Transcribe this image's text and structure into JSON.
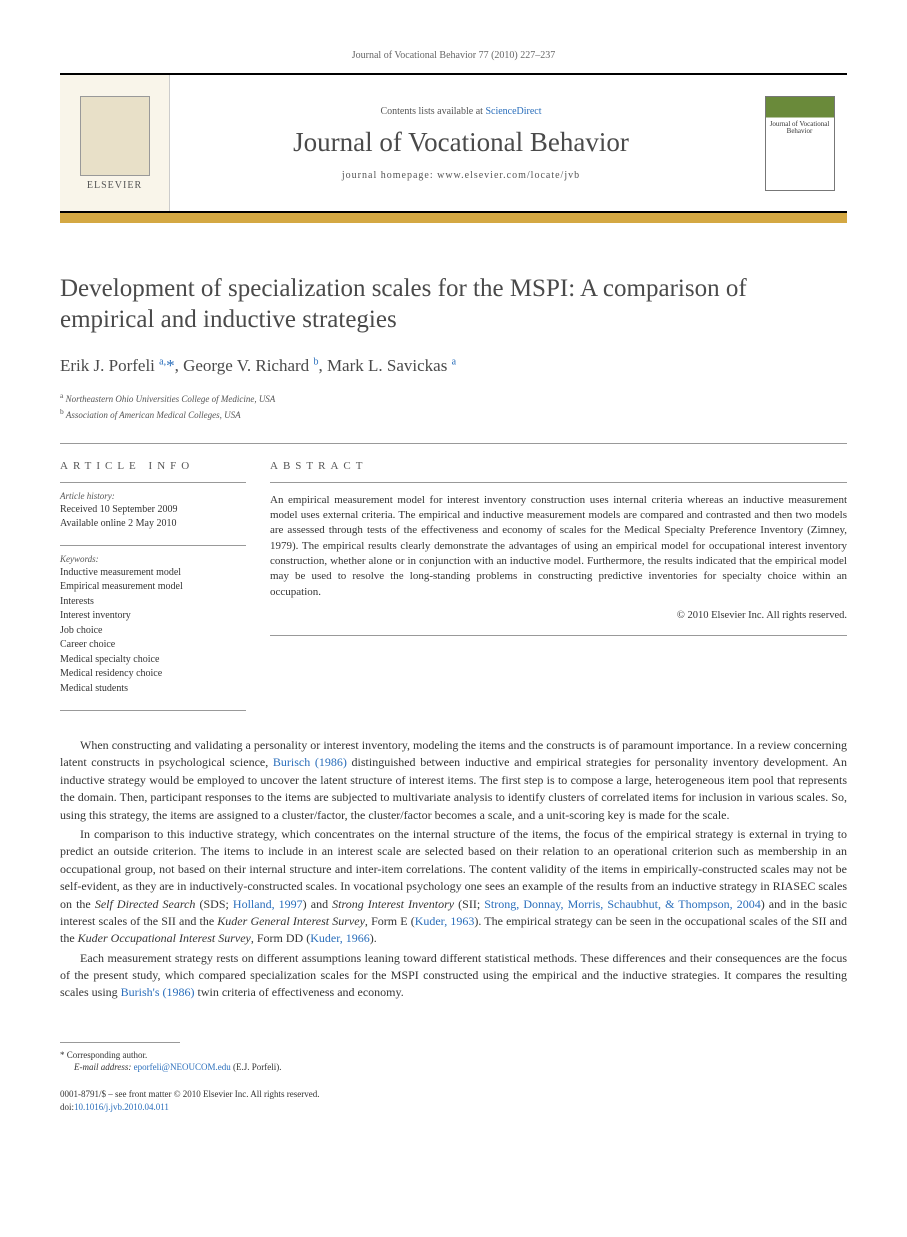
{
  "header": {
    "citation": "Journal of Vocational Behavior 77 (2010) 227–237"
  },
  "masthead": {
    "contents_prefix": "Contents lists available at ",
    "contents_link": "ScienceDirect",
    "journal_title": "Journal of Vocational Behavior",
    "homepage_prefix": "journal homepage: ",
    "homepage_url": "www.elsevier.com/locate/jvb",
    "publisher": "ELSEVIER",
    "cover_label": "Journal of Vocational Behavior"
  },
  "article": {
    "title": "Development of specialization scales for the MSPI: A comparison of empirical and inductive strategies",
    "authors_html": "Erik J. Porfeli <sup>a,</sup><span class='star'>*</span>, George V. Richard <sup>b</sup>, Mark L. Savickas <sup>a</sup>",
    "affiliations": [
      {
        "marker": "a",
        "text": "Northeastern Ohio Universities College of Medicine, USA"
      },
      {
        "marker": "b",
        "text": "Association of American Medical Colleges, USA"
      }
    ]
  },
  "info": {
    "heading": "ARTICLE INFO",
    "history_label": "Article history:",
    "history_lines": [
      "Received 10 September 2009",
      "Available online 2 May 2010"
    ],
    "keywords_label": "Keywords:",
    "keywords": [
      "Inductive measurement model",
      "Empirical measurement model",
      "Interests",
      "Interest inventory",
      "Job choice",
      "Career choice",
      "Medical specialty choice",
      "Medical residency choice",
      "Medical students"
    ]
  },
  "abstract": {
    "heading": "ABSTRACT",
    "text": "An empirical measurement model for interest inventory construction uses internal criteria whereas an inductive measurement model uses external criteria. The empirical and inductive measurement models are compared and contrasted and then two models are assessed through tests of the effectiveness and economy of scales for the Medical Specialty Preference Inventory (Zimney, 1979). The empirical results clearly demonstrate the advantages of using an empirical model for occupational interest inventory construction, whether alone or in conjunction with an inductive model. Furthermore, the results indicated that the empirical model may be used to resolve the long-standing problems in constructing predictive inventories for specialty choice within an occupation.",
    "copyright": "© 2010 Elsevier Inc. All rights reserved."
  },
  "body": {
    "paragraphs": [
      "When constructing and validating a personality or interest inventory, modeling the items and the constructs is of paramount importance. In a review concerning latent constructs in psychological science, <a href='#'>Burisch (1986)</a> distinguished between inductive and empirical strategies for personality inventory development. An inductive strategy would be employed to uncover the latent structure of interest items. The first step is to compose a large, heterogeneous item pool that represents the domain. Then, participant responses to the items are subjected to multivariate analysis to identify clusters of correlated items for inclusion in various scales. So, using this strategy, the items are assigned to a cluster/factor, the cluster/factor becomes a scale, and a unit-scoring key is made for the scale.",
      "In comparison to this inductive strategy, which concentrates on the internal structure of the items, the focus of the empirical strategy is external in trying to predict an outside criterion. The items to include in an interest scale are selected based on their relation to an operational criterion such as membership in an occupational group, not based on their internal structure and inter-item correlations. The content validity of the items in empirically-constructed scales may not be self-evident, as they are in inductively-constructed scales. In vocational psychology one sees an example of the results from an inductive strategy in RIASEC scales on the <i>Self Directed Search</i> (SDS; <a href='#'>Holland, 1997</a>) and <i>Strong Interest Inventory</i> (SII; <a href='#'>Strong, Donnay, Morris, Schaubhut, & Thompson, 2004</a>) and in the basic interest scales of the SII and the <i>Kuder General Interest Survey</i>, Form E (<a href='#'>Kuder, 1963</a>). The empirical strategy can be seen in the occupational scales of the SII and the <i>Kuder Occupational Interest Survey</i>, Form DD (<a href='#'>Kuder, 1966</a>).",
      "Each measurement strategy rests on different assumptions leaning toward different statistical methods. These differences and their consequences are the focus of the present study, which compared specialization scales for the MSPI constructed using the empirical and the inductive strategies. It compares the resulting scales using <a href='#'>Burish's (1986)</a> twin criteria of effectiveness and economy."
    ]
  },
  "footnotes": {
    "corresponding": "Corresponding author.",
    "email_label": "E-mail address:",
    "email": "eporfeli@NEOUCOM.edu",
    "email_attrib": "(E.J. Porfeli)."
  },
  "bottom": {
    "issn_line": "0001-8791/$ – see front matter © 2010 Elsevier Inc. All rights reserved.",
    "doi_prefix": "doi:",
    "doi": "10.1016/j.jvb.2010.04.011"
  },
  "colors": {
    "link": "#2a6ebb",
    "gold": "#d4a843",
    "text": "#333333",
    "muted": "#555555"
  }
}
